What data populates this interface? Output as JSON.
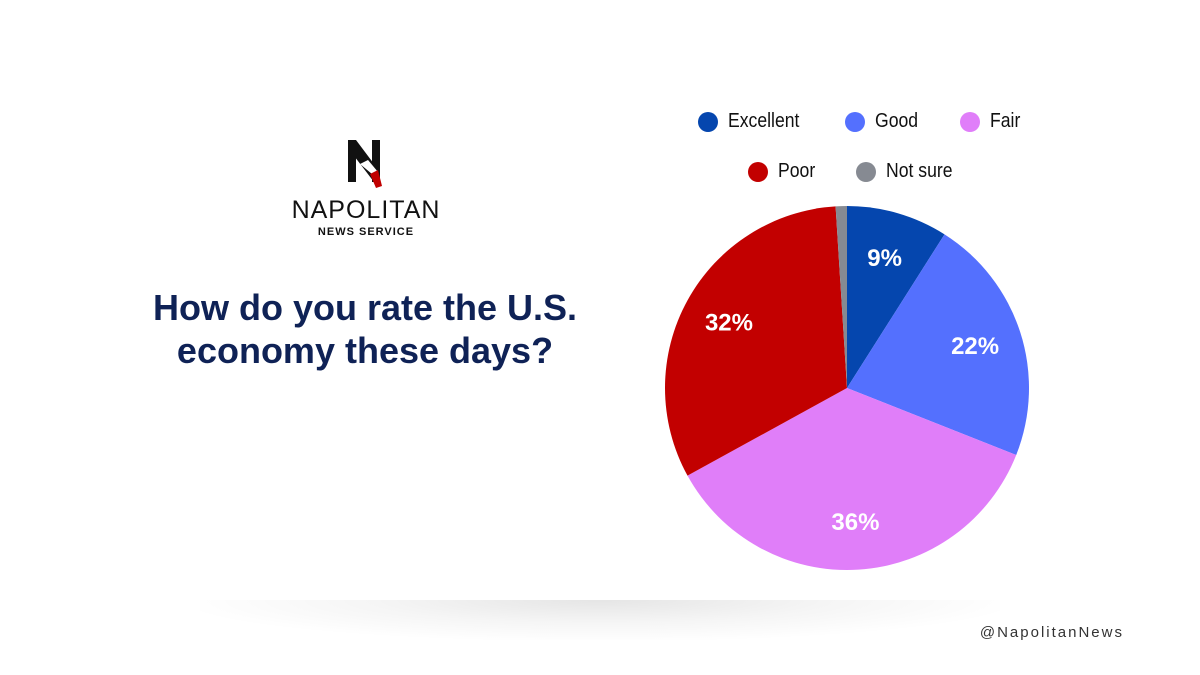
{
  "brand": {
    "logo_letter": "N",
    "name": "NAPOLITAN",
    "subtitle": "NEWS SERVICE",
    "colors": {
      "navy": "#0f2256",
      "red": "#c00000",
      "black": "#111111"
    }
  },
  "question": "How do you rate the U.S. economy these days?",
  "handle": "@NapolitanNews",
  "chart_data": {
    "type": "pie",
    "title": "How do you rate the U.S. economy these days?",
    "legend_position": "top",
    "categories": [
      "Excellent",
      "Good",
      "Fair",
      "Poor",
      "Not sure"
    ],
    "values": [
      9,
      22,
      36,
      32,
      1
    ],
    "data_labels": [
      "9%",
      "22%",
      "36%",
      "32%",
      ""
    ],
    "colors": [
      "#0546ae",
      "#5470fe",
      "#e07ef9",
      "#c20000",
      "#868a92"
    ]
  }
}
